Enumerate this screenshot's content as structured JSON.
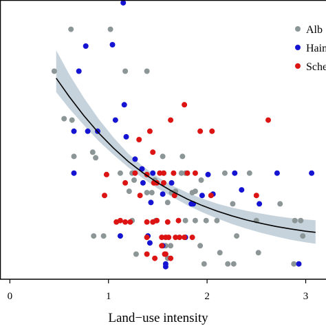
{
  "chart_data": {
    "type": "scatter",
    "xlabel": "Land−use intensity",
    "ylabel": "",
    "title": "",
    "xlim": [
      -0.1,
      3.15
    ],
    "ylim": [
      0,
      1
    ],
    "x_ticks": [
      0,
      1,
      2,
      3
    ],
    "x_tick_labels": [
      "0",
      "1",
      "2",
      "3"
    ],
    "grid": false,
    "legend_position": "top-right",
    "colors": {
      "Alb": "#8c9696",
      "Hain": "#1414d2",
      "Sche": "#dc1414",
      "fit_line": "#000000",
      "ribbon": "#c6d3dc"
    },
    "series": [
      {
        "name": "Alb",
        "color": "#8c9696",
        "points": [
          [
            0.45,
            0.745
          ],
          [
            0.62,
            0.895
          ],
          [
            1.02,
            0.895
          ],
          [
            0.55,
            0.575
          ],
          [
            0.63,
            0.57
          ],
          [
            1.17,
            0.745
          ],
          [
            1.39,
            0.745
          ],
          [
            0.84,
            0.455
          ],
          [
            0.65,
            0.44
          ],
          [
            1.55,
            0.44
          ],
          [
            1.75,
            0.44
          ],
          [
            0.87,
            0.435
          ],
          [
            1.12,
            0.38
          ],
          [
            1.24,
            0.38
          ],
          [
            1.56,
            0.38
          ],
          [
            1.74,
            0.38
          ],
          [
            1.78,
            0.38
          ],
          [
            2.18,
            0.38
          ],
          [
            2.43,
            0.38
          ],
          [
            1.26,
            0.355
          ],
          [
            1.47,
            0.355
          ],
          [
            1.94,
            0.355
          ],
          [
            1.21,
            0.315
          ],
          [
            1.68,
            0.315
          ],
          [
            1.88,
            0.315
          ],
          [
            1.39,
            0.31
          ],
          [
            1.44,
            0.31
          ],
          [
            1.64,
            0.31
          ],
          [
            1.85,
            0.31
          ],
          [
            1.6,
            0.275
          ],
          [
            2.26,
            0.27
          ],
          [
            2.74,
            0.27
          ],
          [
            1.48,
            0.21
          ],
          [
            1.78,
            0.21
          ],
          [
            1.88,
            0.21
          ],
          [
            1.24,
            0.21
          ],
          [
            1.49,
            0.21
          ],
          [
            1.99,
            0.21
          ],
          [
            2.1,
            0.21
          ],
          [
            2.5,
            0.21
          ],
          [
            2.89,
            0.21
          ],
          [
            2.95,
            0.21
          ],
          [
            0.85,
            0.155
          ],
          [
            2.3,
            0.155
          ],
          [
            2.97,
            0.155
          ],
          [
            0.95,
            0.155
          ],
          [
            1.58,
            0.12
          ],
          [
            1.63,
            0.12
          ],
          [
            1.93,
            0.12
          ],
          [
            2.13,
            0.095
          ],
          [
            2.52,
            0.095
          ],
          [
            1.28,
            0.09
          ],
          [
            1.6,
            0.075
          ],
          [
            2.21,
            0.055
          ],
          [
            2.27,
            0.055
          ],
          [
            2.88,
            0.055
          ],
          [
            1.97,
            0.055
          ]
        ]
      },
      {
        "name": "Hain",
        "color": "#1414d2",
        "points": [
          [
            1.15,
            0.99
          ],
          [
            1.04,
            0.84
          ],
          [
            0.77,
            0.835
          ],
          [
            0.7,
            0.745
          ],
          [
            1.16,
            0.625
          ],
          [
            1.07,
            0.57
          ],
          [
            0.79,
            0.53
          ],
          [
            0.65,
            0.53
          ],
          [
            0.89,
            0.53
          ],
          [
            1.18,
            0.51
          ],
          [
            1.27,
            0.43
          ],
          [
            1.34,
            0.395
          ],
          [
            0.65,
            0.38
          ],
          [
            1.45,
            0.38
          ],
          [
            2.28,
            0.38
          ],
          [
            2.71,
            0.38
          ],
          [
            3.06,
            0.38
          ],
          [
            2.01,
            0.375
          ],
          [
            1.35,
            0.345
          ],
          [
            1.64,
            0.345
          ],
          [
            2.35,
            0.32
          ],
          [
            1.55,
            0.305
          ],
          [
            2.06,
            0.305
          ],
          [
            1.95,
            0.3
          ],
          [
            1.43,
            0.275
          ],
          [
            1.84,
            0.27
          ],
          [
            2.53,
            0.27
          ],
          [
            1.86,
            0.27
          ],
          [
            1.4,
            0.155
          ],
          [
            1.12,
            0.155
          ],
          [
            1.78,
            0.15
          ],
          [
            1.42,
            0.13
          ],
          [
            1.55,
            0.12
          ],
          [
            1.58,
            0.055
          ],
          [
            2.93,
            0.055
          ],
          [
            1.58,
            0.045
          ]
        ]
      },
      {
        "name": "Sche",
        "color": "#dc1414",
        "points": [
          [
            1.77,
            0.625
          ],
          [
            1.63,
            0.57
          ],
          [
            2.62,
            0.57
          ],
          [
            1.42,
            0.53
          ],
          [
            1.93,
            0.53
          ],
          [
            2.05,
            0.53
          ],
          [
            1.31,
            0.5
          ],
          [
            1.45,
            0.455
          ],
          [
            1.27,
            0.38
          ],
          [
            1.39,
            0.375
          ],
          [
            1.56,
            0.38
          ],
          [
            1.66,
            0.38
          ],
          [
            0.98,
            0.375
          ],
          [
            1.52,
            0.38
          ],
          [
            1.8,
            0.38
          ],
          [
            1.88,
            0.38
          ],
          [
            1.17,
            0.345
          ],
          [
            1.46,
            0.345
          ],
          [
            1.49,
            0.345
          ],
          [
            1.56,
            0.345
          ],
          [
            1.32,
            0.3
          ],
          [
            1.67,
            0.3
          ],
          [
            2.04,
            0.3
          ],
          [
            2.5,
            0.3
          ],
          [
            0.96,
            0.3
          ],
          [
            1.08,
            0.205
          ],
          [
            1.17,
            0.205
          ],
          [
            1.22,
            0.205
          ],
          [
            1.39,
            0.205
          ],
          [
            1.45,
            0.205
          ],
          [
            1.6,
            0.205
          ],
          [
            1.71,
            0.21
          ],
          [
            1.12,
            0.21
          ],
          [
            1.49,
            0.21
          ],
          [
            1.39,
            0.15
          ],
          [
            1.54,
            0.15
          ],
          [
            1.58,
            0.15
          ],
          [
            1.68,
            0.15
          ],
          [
            1.72,
            0.15
          ],
          [
            1.77,
            0.15
          ],
          [
            1.85,
            0.15
          ],
          [
            1.61,
            0.15
          ],
          [
            1.54,
            0.12
          ],
          [
            1.58,
            0.09
          ],
          [
            1.39,
            0.09
          ],
          [
            1.47,
            0.075
          ],
          [
            1.57,
            0.09
          ],
          [
            1.63,
            0.075
          ]
        ]
      }
    ],
    "fit_line": {
      "x": [
        0.47,
        0.6,
        0.75,
        0.9,
        1.05,
        1.2,
        1.35,
        1.5,
        1.65,
        1.8,
        1.95,
        2.1,
        2.25,
        2.4,
        2.55,
        2.7,
        2.85,
        3.0,
        3.1
      ],
      "y": [
        0.72,
        0.655,
        0.586,
        0.524,
        0.47,
        0.422,
        0.381,
        0.345,
        0.314,
        0.287,
        0.264,
        0.244,
        0.227,
        0.212,
        0.2,
        0.189,
        0.18,
        0.172,
        0.168
      ],
      "lower": [
        0.67,
        0.612,
        0.552,
        0.495,
        0.446,
        0.401,
        0.361,
        0.325,
        0.294,
        0.265,
        0.24,
        0.218,
        0.198,
        0.181,
        0.166,
        0.153,
        0.141,
        0.132,
        0.127
      ],
      "upper": [
        0.82,
        0.735,
        0.65,
        0.574,
        0.508,
        0.45,
        0.404,
        0.366,
        0.335,
        0.31,
        0.289,
        0.271,
        0.257,
        0.245,
        0.235,
        0.226,
        0.219,
        0.214,
        0.211
      ]
    }
  }
}
